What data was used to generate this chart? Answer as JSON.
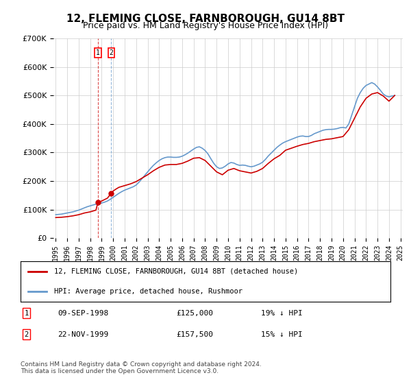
{
  "title": "12, FLEMING CLOSE, FARNBOROUGH, GU14 8BT",
  "subtitle": "Price paid vs. HM Land Registry's House Price Index (HPI)",
  "ylabel": "",
  "xlabel": "",
  "ylim": [
    0,
    700000
  ],
  "yticks": [
    0,
    100000,
    200000,
    300000,
    400000,
    500000,
    600000,
    700000
  ],
  "ytick_labels": [
    "£0",
    "£100K",
    "£200K",
    "£300K",
    "£400K",
    "£500K",
    "£600K",
    "£700K"
  ],
  "legend_line1": "12, FLEMING CLOSE, FARNBOROUGH, GU14 8BT (detached house)",
  "legend_line2": "HPI: Average price, detached house, Rushmoor",
  "transaction1_label": "1",
  "transaction1_date": "09-SEP-1998",
  "transaction1_price": "£125,000",
  "transaction1_hpi": "19% ↓ HPI",
  "transaction2_label": "2",
  "transaction2_date": "22-NOV-1999",
  "transaction2_price": "£157,500",
  "transaction2_hpi": "15% ↓ HPI",
  "footer": "Contains HM Land Registry data © Crown copyright and database right 2024.\nThis data is licensed under the Open Government Licence v3.0.",
  "line_red_color": "#cc0000",
  "line_blue_color": "#6699cc",
  "vline_color1": "#cc0000",
  "vline_color2": "#6699cc",
  "hpi_x": [
    1995.0,
    1995.25,
    1995.5,
    1995.75,
    1996.0,
    1996.25,
    1996.5,
    1996.75,
    1997.0,
    1997.25,
    1997.5,
    1997.75,
    1998.0,
    1998.25,
    1998.5,
    1998.75,
    1999.0,
    1999.25,
    1999.5,
    1999.75,
    2000.0,
    2000.25,
    2000.5,
    2000.75,
    2001.0,
    2001.25,
    2001.5,
    2001.75,
    2002.0,
    2002.25,
    2002.5,
    2002.75,
    2003.0,
    2003.25,
    2003.5,
    2003.75,
    2004.0,
    2004.25,
    2004.5,
    2004.75,
    2005.0,
    2005.25,
    2005.5,
    2005.75,
    2006.0,
    2006.25,
    2006.5,
    2006.75,
    2007.0,
    2007.25,
    2007.5,
    2007.75,
    2008.0,
    2008.25,
    2008.5,
    2008.75,
    2009.0,
    2009.25,
    2009.5,
    2009.75,
    2010.0,
    2010.25,
    2010.5,
    2010.75,
    2011.0,
    2011.25,
    2011.5,
    2011.75,
    2012.0,
    2012.25,
    2012.5,
    2012.75,
    2013.0,
    2013.25,
    2013.5,
    2013.75,
    2014.0,
    2014.25,
    2014.5,
    2014.75,
    2015.0,
    2015.25,
    2015.5,
    2015.75,
    2016.0,
    2016.25,
    2016.5,
    2016.75,
    2017.0,
    2017.25,
    2017.5,
    2017.75,
    2018.0,
    2018.25,
    2018.5,
    2018.75,
    2019.0,
    2019.25,
    2019.5,
    2019.75,
    2020.0,
    2020.25,
    2020.5,
    2020.75,
    2021.0,
    2021.25,
    2021.5,
    2021.75,
    2022.0,
    2022.25,
    2022.5,
    2022.75,
    2023.0,
    2023.25,
    2023.5,
    2023.75,
    2024.0,
    2024.25,
    2024.5
  ],
  "hpi_y": [
    82000,
    83000,
    84000,
    86000,
    88000,
    90000,
    92000,
    95000,
    98000,
    102000,
    106000,
    110000,
    113000,
    116000,
    119000,
    121000,
    123000,
    126000,
    130000,
    136000,
    143000,
    150000,
    157000,
    163000,
    168000,
    172000,
    176000,
    180000,
    186000,
    196000,
    208000,
    220000,
    232000,
    244000,
    255000,
    264000,
    272000,
    278000,
    282000,
    284000,
    284000,
    283000,
    283000,
    284000,
    287000,
    292000,
    298000,
    305000,
    312000,
    318000,
    320000,
    315000,
    307000,
    295000,
    278000,
    262000,
    250000,
    244000,
    246000,
    252000,
    260000,
    265000,
    263000,
    258000,
    255000,
    256000,
    255000,
    252000,
    250000,
    252000,
    256000,
    260000,
    266000,
    276000,
    288000,
    298000,
    308000,
    318000,
    326000,
    333000,
    338000,
    342000,
    346000,
    350000,
    354000,
    357000,
    358000,
    356000,
    356000,
    360000,
    366000,
    370000,
    374000,
    378000,
    380000,
    381000,
    381000,
    382000,
    384000,
    387000,
    388000,
    386000,
    400000,
    430000,
    460000,
    490000,
    510000,
    525000,
    535000,
    540000,
    545000,
    540000,
    530000,
    518000,
    505000,
    498000,
    495000,
    498000,
    500000
  ],
  "red_x": [
    1995.0,
    1995.5,
    1996.0,
    1996.5,
    1997.0,
    1997.5,
    1998.0,
    1998.5,
    1998.667,
    1999.0,
    1999.25,
    1999.5,
    1999.833,
    2000.0,
    2000.25,
    2000.5,
    2001.0,
    2001.5,
    2002.0,
    2002.5,
    2003.0,
    2003.5,
    2004.0,
    2004.5,
    2005.0,
    2005.5,
    2006.0,
    2006.5,
    2007.0,
    2007.5,
    2008.0,
    2008.5,
    2009.0,
    2009.5,
    2010.0,
    2010.5,
    2011.0,
    2011.5,
    2012.0,
    2012.5,
    2013.0,
    2013.5,
    2014.0,
    2014.5,
    2015.0,
    2015.5,
    2016.0,
    2016.5,
    2017.0,
    2017.5,
    2018.0,
    2018.5,
    2019.0,
    2019.5,
    2020.0,
    2020.5,
    2021.0,
    2021.5,
    2022.0,
    2022.5,
    2023.0,
    2023.5,
    2024.0,
    2024.5
  ],
  "red_y": [
    72000,
    73000,
    75000,
    78000,
    82000,
    88000,
    92000,
    98000,
    125000,
    130000,
    135000,
    140000,
    157500,
    165000,
    172000,
    178000,
    184000,
    190000,
    198000,
    210000,
    222000,
    236000,
    248000,
    256000,
    258000,
    258000,
    262000,
    270000,
    280000,
    282000,
    272000,
    252000,
    232000,
    222000,
    238000,
    244000,
    236000,
    232000,
    228000,
    234000,
    244000,
    262000,
    278000,
    290000,
    308000,
    315000,
    322000,
    328000,
    332000,
    338000,
    342000,
    346000,
    348000,
    352000,
    356000,
    380000,
    420000,
    460000,
    490000,
    505000,
    510000,
    498000,
    480000,
    500000
  ],
  "transaction1_x": 1998.667,
  "transaction1_y": 125000,
  "transaction2_x": 1999.833,
  "transaction2_y": 157500,
  "xlim_left": 1994.8,
  "xlim_right": 2025.2,
  "xticks": [
    1995,
    1996,
    1997,
    1998,
    1999,
    2000,
    2001,
    2002,
    2003,
    2004,
    2005,
    2006,
    2007,
    2008,
    2009,
    2010,
    2011,
    2012,
    2013,
    2014,
    2015,
    2016,
    2017,
    2018,
    2019,
    2020,
    2021,
    2022,
    2023,
    2024,
    2025
  ],
  "background_color": "#ffffff",
  "grid_color": "#cccccc"
}
